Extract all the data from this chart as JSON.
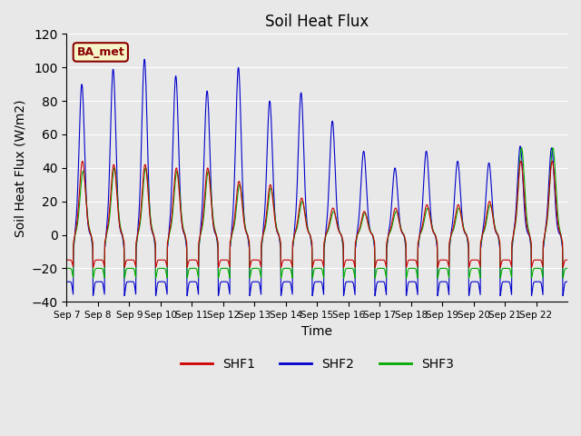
{
  "title": "Soil Heat Flux",
  "xlabel": "Time",
  "ylabel": "Soil Heat Flux (W/m2)",
  "ylim": [
    -40,
    120
  ],
  "yticks": [
    -40,
    -20,
    0,
    20,
    40,
    60,
    80,
    100,
    120
  ],
  "plot_bg_color": "#e8e8e8",
  "annotation_text": "BA_met",
  "annotation_bg": "#f5f5c8",
  "annotation_border": "#8B0000",
  "legend_colors": {
    "SHF1": "#cc0000",
    "SHF2": "#0000cc",
    "SHF3": "#00aa00"
  },
  "x_tick_labels": [
    "Sep 7",
    "Sep 8",
    "Sep 9",
    "Sep 10",
    "Sep 11",
    "Sep 12",
    "Sep 13",
    "Sep 14",
    "Sep 15",
    "Sep 16",
    "Sep 17",
    "Sep 18",
    "Sep 19",
    "Sep 20",
    "Sep 21",
    "Sep 22"
  ],
  "n_days": 16,
  "day_peaks_shf2": [
    90,
    99,
    105,
    95,
    86,
    100,
    80,
    85,
    68,
    50,
    40,
    50,
    44,
    43,
    53,
    52
  ],
  "day_peaks_shf1": [
    44,
    42,
    42,
    40,
    40,
    32,
    30,
    22,
    16,
    14,
    16,
    18,
    18,
    20,
    44,
    44
  ],
  "day_peaks_shf3": [
    38,
    40,
    40,
    38,
    38,
    30,
    28,
    20,
    14,
    13,
    14,
    16,
    16,
    18,
    52,
    52
  ]
}
